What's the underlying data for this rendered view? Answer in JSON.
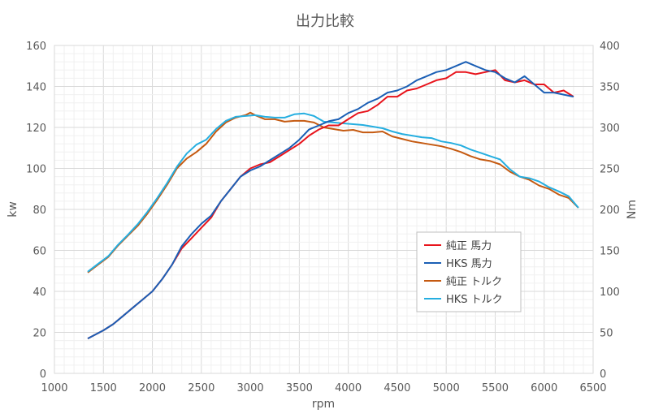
{
  "chart_data": {
    "type": "line",
    "title": "出力比較",
    "xlabel": "rpm",
    "ylabel_left": "kw",
    "ylabel_right": "Nm",
    "xlim": [
      1000,
      6500
    ],
    "ylim_left": [
      0,
      160
    ],
    "ylim_right": [
      0,
      400
    ],
    "x_ticks": [
      "1000",
      "1500",
      "2000",
      "2500",
      "3000",
      "3500",
      "4000",
      "4500",
      "5000",
      "5500",
      "6000",
      "6500"
    ],
    "y_left_ticks": [
      "0",
      "20",
      "40",
      "60",
      "80",
      "100",
      "120",
      "140",
      "160"
    ],
    "y_right_ticks": [
      "0",
      "50",
      "100",
      "150",
      "200",
      "250",
      "300",
      "350",
      "400"
    ],
    "grid": true,
    "legend_position": "right-middle",
    "series": [
      {
        "name": "純正 馬力",
        "color": "#e8141c",
        "axis": "left",
        "points": [
          [
            1340,
            17
          ],
          [
            1500,
            21
          ],
          [
            1600,
            24
          ],
          [
            1700,
            28
          ],
          [
            1800,
            32
          ],
          [
            1900,
            36
          ],
          [
            2000,
            40
          ],
          [
            2100,
            46
          ],
          [
            2200,
            53
          ],
          [
            2300,
            61
          ],
          [
            2400,
            66
          ],
          [
            2500,
            71
          ],
          [
            2600,
            76
          ],
          [
            2700,
            84
          ],
          [
            2800,
            90
          ],
          [
            2900,
            96
          ],
          [
            3000,
            100
          ],
          [
            3100,
            102
          ],
          [
            3200,
            103
          ],
          [
            3300,
            106
          ],
          [
            3400,
            109
          ],
          [
            3500,
            112
          ],
          [
            3600,
            116
          ],
          [
            3700,
            119
          ],
          [
            3800,
            121
          ],
          [
            3900,
            121
          ],
          [
            4000,
            124
          ],
          [
            4100,
            127
          ],
          [
            4200,
            128
          ],
          [
            4300,
            131
          ],
          [
            4400,
            135
          ],
          [
            4500,
            135
          ],
          [
            4600,
            138
          ],
          [
            4700,
            139
          ],
          [
            4800,
            141
          ],
          [
            4900,
            143
          ],
          [
            5000,
            144
          ],
          [
            5100,
            147
          ],
          [
            5200,
            147
          ],
          [
            5300,
            146
          ],
          [
            5400,
            147
          ],
          [
            5500,
            148
          ],
          [
            5600,
            143
          ],
          [
            5700,
            142
          ],
          [
            5800,
            143
          ],
          [
            5900,
            141
          ],
          [
            6000,
            141
          ],
          [
            6100,
            137
          ],
          [
            6200,
            138
          ],
          [
            6300,
            135
          ]
        ]
      },
      {
        "name": "HKS 馬力",
        "color": "#1b5fb5",
        "axis": "left",
        "points": [
          [
            1340,
            17
          ],
          [
            1500,
            21
          ],
          [
            1600,
            24
          ],
          [
            1700,
            28
          ],
          [
            1800,
            32
          ],
          [
            1900,
            36
          ],
          [
            2000,
            40
          ],
          [
            2100,
            46
          ],
          [
            2200,
            53
          ],
          [
            2300,
            62
          ],
          [
            2400,
            68
          ],
          [
            2500,
            73
          ],
          [
            2600,
            77
          ],
          [
            2700,
            84
          ],
          [
            2800,
            90
          ],
          [
            2900,
            96
          ],
          [
            3000,
            99
          ],
          [
            3100,
            101
          ],
          [
            3200,
            104
          ],
          [
            3300,
            107
          ],
          [
            3400,
            110
          ],
          [
            3500,
            114
          ],
          [
            3600,
            119
          ],
          [
            3700,
            121
          ],
          [
            3800,
            123
          ],
          [
            3900,
            124
          ],
          [
            4000,
            127
          ],
          [
            4100,
            129
          ],
          [
            4200,
            132
          ],
          [
            4300,
            134
          ],
          [
            4400,
            137
          ],
          [
            4500,
            138
          ],
          [
            4600,
            140
          ],
          [
            4700,
            143
          ],
          [
            4800,
            145
          ],
          [
            4900,
            147
          ],
          [
            5000,
            148
          ],
          [
            5100,
            150
          ],
          [
            5200,
            152
          ],
          [
            5300,
            150
          ],
          [
            5400,
            148
          ],
          [
            5500,
            147
          ],
          [
            5600,
            144
          ],
          [
            5700,
            142
          ],
          [
            5800,
            145
          ],
          [
            5900,
            141
          ],
          [
            6000,
            137
          ],
          [
            6100,
            137
          ],
          [
            6200,
            136
          ],
          [
            6300,
            135
          ]
        ]
      },
      {
        "name": "純正 トルク",
        "color": "#c55a11",
        "axis": "right",
        "points": [
          [
            1340,
            123
          ],
          [
            1450,
            133
          ],
          [
            1550,
            142
          ],
          [
            1650,
            156
          ],
          [
            1750,
            168
          ],
          [
            1850,
            180
          ],
          [
            1950,
            195
          ],
          [
            2050,
            212
          ],
          [
            2150,
            230
          ],
          [
            2250,
            250
          ],
          [
            2350,
            262
          ],
          [
            2450,
            270
          ],
          [
            2550,
            280
          ],
          [
            2650,
            295
          ],
          [
            2750,
            306
          ],
          [
            2850,
            312
          ],
          [
            2950,
            315
          ],
          [
            3000,
            318
          ],
          [
            3050,
            315
          ],
          [
            3150,
            310
          ],
          [
            3250,
            310
          ],
          [
            3350,
            307
          ],
          [
            3450,
            308
          ],
          [
            3550,
            308
          ],
          [
            3650,
            306
          ],
          [
            3750,
            300
          ],
          [
            3850,
            298
          ],
          [
            3950,
            296
          ],
          [
            4050,
            297
          ],
          [
            4150,
            294
          ],
          [
            4250,
            294
          ],
          [
            4350,
            295
          ],
          [
            4450,
            289
          ],
          [
            4550,
            286
          ],
          [
            4650,
            283
          ],
          [
            4750,
            281
          ],
          [
            4850,
            279
          ],
          [
            4950,
            277
          ],
          [
            5050,
            274
          ],
          [
            5150,
            270
          ],
          [
            5250,
            265
          ],
          [
            5350,
            261
          ],
          [
            5450,
            259
          ],
          [
            5550,
            255
          ],
          [
            5650,
            246
          ],
          [
            5750,
            240
          ],
          [
            5850,
            236
          ],
          [
            5950,
            229
          ],
          [
            6050,
            225
          ],
          [
            6150,
            218
          ],
          [
            6250,
            214
          ],
          [
            6350,
            202
          ]
        ]
      },
      {
        "name": "HKS トルク",
        "color": "#25aee0",
        "axis": "right",
        "points": [
          [
            1340,
            124
          ],
          [
            1450,
            134
          ],
          [
            1550,
            143
          ],
          [
            1650,
            157
          ],
          [
            1750,
            169
          ],
          [
            1850,
            182
          ],
          [
            1950,
            197
          ],
          [
            2050,
            214
          ],
          [
            2150,
            232
          ],
          [
            2250,
            252
          ],
          [
            2350,
            268
          ],
          [
            2450,
            279
          ],
          [
            2550,
            285
          ],
          [
            2650,
            298
          ],
          [
            2750,
            308
          ],
          [
            2850,
            313
          ],
          [
            2950,
            314
          ],
          [
            3050,
            315
          ],
          [
            3150,
            313
          ],
          [
            3250,
            312
          ],
          [
            3350,
            312
          ],
          [
            3450,
            316
          ],
          [
            3550,
            317
          ],
          [
            3650,
            314
          ],
          [
            3750,
            307
          ],
          [
            3850,
            306
          ],
          [
            3950,
            305
          ],
          [
            4050,
            304
          ],
          [
            4150,
            303
          ],
          [
            4250,
            301
          ],
          [
            4350,
            299
          ],
          [
            4450,
            295
          ],
          [
            4550,
            292
          ],
          [
            4650,
            290
          ],
          [
            4750,
            288
          ],
          [
            4850,
            287
          ],
          [
            4950,
            283
          ],
          [
            5050,
            281
          ],
          [
            5150,
            278
          ],
          [
            5250,
            273
          ],
          [
            5350,
            269
          ],
          [
            5450,
            265
          ],
          [
            5550,
            261
          ],
          [
            5650,
            249
          ],
          [
            5750,
            240
          ],
          [
            5850,
            238
          ],
          [
            5950,
            234
          ],
          [
            6050,
            227
          ],
          [
            6150,
            222
          ],
          [
            6250,
            216
          ],
          [
            6350,
            202
          ]
        ]
      }
    ]
  }
}
